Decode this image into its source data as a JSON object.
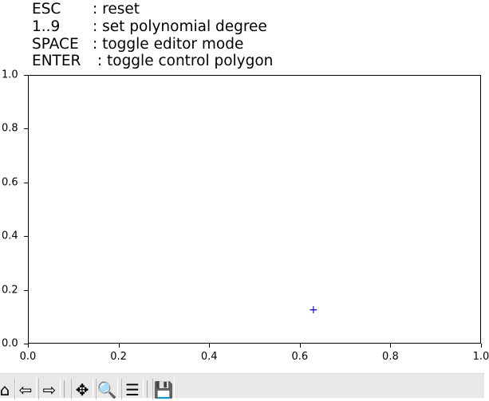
{
  "help": [
    {
      "key": "ESC",
      "desc": ": reset"
    },
    {
      "key": "1..9",
      "desc": ": set polynomial degree"
    },
    {
      "key": "SPACE",
      "desc": ": toggle editor mode"
    },
    {
      "key": "ENTER",
      "desc": " : toggle control polygon"
    }
  ],
  "chart_data": {
    "type": "scatter",
    "xlim": [
      0,
      1
    ],
    "ylim": [
      0,
      1
    ],
    "x_ticks": [
      "0.0",
      "0.2",
      "0.4",
      "0.6",
      "0.8",
      "1.0"
    ],
    "y_ticks": [
      "0.0",
      "0.2",
      "0.4",
      "0.6",
      "0.8",
      "1.0"
    ],
    "points": [
      {
        "x": 0.63,
        "y": 0.125
      }
    ],
    "marker": "+",
    "color": "#0000ff",
    "grid": false
  },
  "toolbar": [
    {
      "name": "home-icon",
      "glyph": "⌂"
    },
    {
      "name": "back-icon",
      "glyph": "⇦"
    },
    {
      "name": "forward-icon",
      "glyph": "⇨"
    },
    {
      "name": "pan-icon",
      "glyph": "✥"
    },
    {
      "name": "zoom-icon",
      "glyph": "🔍"
    },
    {
      "name": "configure-subplots-icon",
      "glyph": "☰"
    },
    {
      "name": "save-icon",
      "glyph": "💾"
    }
  ]
}
